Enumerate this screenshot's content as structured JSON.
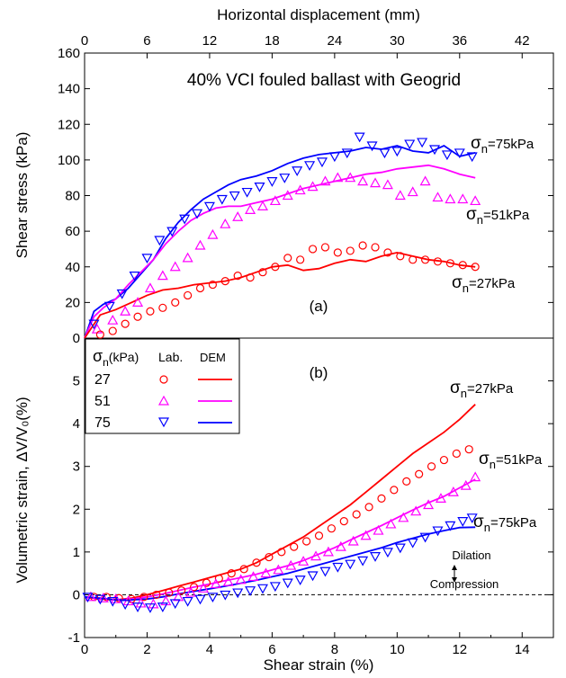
{
  "chart_data": [
    {
      "type": "line",
      "panel_label": "(a)",
      "title": "40% VCI  fouled ballast with Geogrid",
      "xlabel": "Shear strain (%)",
      "x2label": "Horizontal displacement (mm)",
      "ylabel": "Shear stress (kPa)",
      "xlim": [
        0,
        15
      ],
      "x2lim": [
        0,
        45
      ],
      "ylim": [
        0,
        160
      ],
      "x2ticks": [
        0,
        6,
        12,
        18,
        24,
        30,
        36,
        42
      ],
      "yticks": [
        0,
        20,
        40,
        60,
        80,
        100,
        120,
        140,
        160
      ],
      "annotations": [
        {
          "label": "σ",
          "sub": "n",
          "text": "=75kPa"
        },
        {
          "label": "σ",
          "sub": "n",
          "text": "=51kPa"
        },
        {
          "label": "σ",
          "sub": "n",
          "text": "=27kPa"
        }
      ],
      "series": [
        {
          "name": "75",
          "kind": "DEM",
          "color": "#0000ff",
          "x": [
            0,
            0.3,
            0.6,
            1,
            1.4,
            1.8,
            2.2,
            2.6,
            3,
            3.4,
            3.8,
            4.2,
            4.6,
            5,
            5.5,
            6,
            6.5,
            7,
            7.5,
            8,
            8.5,
            9,
            9.5,
            10,
            10.5,
            11,
            11.5,
            12,
            12.5
          ],
          "y": [
            0,
            15,
            19,
            22,
            28,
            36,
            44,
            56,
            65,
            72,
            78,
            82,
            86,
            89,
            91,
            94,
            98,
            101,
            103,
            104,
            105,
            107,
            106,
            108,
            105,
            104,
            108,
            102,
            104
          ]
        },
        {
          "name": "51",
          "kind": "DEM",
          "color": "#ff00ff",
          "x": [
            0,
            0.3,
            0.6,
            1,
            1.4,
            1.8,
            2.2,
            2.6,
            3,
            3.4,
            3.8,
            4.2,
            4.6,
            5,
            5.5,
            6,
            6.5,
            7,
            7.5,
            8,
            8.5,
            9,
            9.5,
            10,
            10.5,
            11,
            11.5,
            12,
            12.5
          ],
          "y": [
            0,
            12,
            17,
            22,
            30,
            37,
            44,
            53,
            60,
            66,
            70,
            73,
            74,
            74,
            76,
            78,
            81,
            84,
            86,
            88,
            90,
            92,
            93,
            95,
            96,
            97,
            95,
            92,
            90
          ]
        },
        {
          "name": "27",
          "kind": "DEM",
          "color": "#ff0000",
          "x": [
            0,
            0.5,
            1,
            1.5,
            2,
            2.5,
            3,
            3.5,
            4,
            4.5,
            5,
            5.5,
            6,
            6.5,
            7,
            7.5,
            8,
            8.5,
            9,
            9.5,
            10,
            10.5,
            11,
            11.5,
            12,
            12.5
          ],
          "y": [
            0,
            13,
            16,
            20,
            24,
            27,
            28,
            30,
            31,
            32,
            34,
            37,
            40,
            41,
            38,
            39,
            42,
            44,
            43,
            46,
            48,
            46,
            44,
            43,
            41,
            40
          ]
        },
        {
          "name": "75",
          "kind": "Lab.",
          "color": "#0000ff",
          "x": [
            0.3,
            0.8,
            1.2,
            1.6,
            2,
            2.4,
            2.8,
            3.2,
            3.6,
            4,
            4.4,
            4.8,
            5.2,
            5.6,
            6,
            6.4,
            6.8,
            7.2,
            7.6,
            8,
            8.4,
            8.8,
            9.2,
            9.6,
            10,
            10.4,
            10.8,
            11.2,
            11.6,
            12,
            12.4
          ],
          "y": [
            8,
            18,
            25,
            35,
            45,
            55,
            60,
            67,
            70,
            74,
            78,
            80,
            82,
            85,
            88,
            90,
            94,
            97,
            99,
            102,
            104,
            113,
            108,
            104,
            105,
            109,
            110,
            106,
            103,
            104,
            102
          ]
        },
        {
          "name": "51",
          "kind": "Lab.",
          "color": "#ff00ff",
          "x": [
            0.4,
            0.9,
            1.3,
            1.7,
            2.1,
            2.5,
            2.9,
            3.3,
            3.7,
            4.1,
            4.5,
            4.9,
            5.3,
            5.7,
            6.1,
            6.5,
            6.9,
            7.3,
            7.7,
            8.1,
            8.5,
            8.9,
            9.3,
            9.7,
            10.1,
            10.5,
            10.9,
            11.3,
            11.7,
            12.1,
            12.5
          ],
          "y": [
            5,
            10,
            15,
            20,
            28,
            35,
            40,
            45,
            52,
            58,
            64,
            68,
            72,
            74,
            77,
            80,
            83,
            85,
            88,
            90,
            90,
            88,
            87,
            86,
            80,
            82,
            88,
            79,
            78,
            78,
            77
          ]
        },
        {
          "name": "27",
          "kind": "Lab.",
          "color": "#ff0000",
          "x": [
            0.5,
            0.9,
            1.3,
            1.7,
            2.1,
            2.5,
            2.9,
            3.3,
            3.7,
            4.1,
            4.5,
            4.9,
            5.3,
            5.7,
            6.1,
            6.5,
            6.9,
            7.3,
            7.7,
            8.1,
            8.5,
            8.9,
            9.3,
            9.7,
            10.1,
            10.5,
            10.9,
            11.3,
            11.7,
            12.1,
            12.5
          ],
          "y": [
            2,
            4,
            8,
            12,
            15,
            17,
            20,
            24,
            28,
            30,
            32,
            35,
            34,
            37,
            40,
            45,
            44,
            50,
            51,
            48,
            49,
            52,
            51,
            48,
            46,
            44,
            44,
            43,
            42,
            41,
            40
          ]
        }
      ]
    },
    {
      "type": "line",
      "panel_label": "(b)",
      "xlabel": "Shear strain (%)",
      "ylabel": "Volumetric strain, ΔV/V₀(%)",
      "xlim": [
        0,
        15
      ],
      "ylim": [
        -1,
        6
      ],
      "xticks": [
        0,
        2,
        4,
        6,
        8,
        10,
        12,
        14
      ],
      "yticks": [
        -1,
        0,
        1,
        2,
        3,
        4,
        5
      ],
      "legend": {
        "placement": "top-left",
        "header": {
          "sigma": "σ",
          "sub": "n",
          "unit": "(kPa)",
          "lab": "Lab.",
          "dem": "DEM"
        },
        "rows": [
          "27",
          "51",
          "75"
        ]
      },
      "annotations": [
        {
          "label": "σ",
          "sub": "n",
          "text": "=27kPa"
        },
        {
          "label": "σ",
          "sub": "n",
          "text": "=51kPa"
        },
        {
          "label": "σ",
          "sub": "n",
          "text": "=75kPa"
        },
        {
          "text": "Dilation"
        },
        {
          "text": "Compression"
        }
      ],
      "series": [
        {
          "name": "27",
          "kind": "DEM",
          "color": "#ff0000",
          "x": [
            0,
            0.5,
            1,
            1.5,
            2,
            2.5,
            3,
            3.5,
            4,
            4.5,
            5,
            5.5,
            6,
            6.5,
            7,
            7.5,
            8,
            8.5,
            9,
            9.5,
            10,
            10.5,
            11,
            11.5,
            12,
            12.5
          ],
          "y": [
            -0.05,
            -0.1,
            -0.12,
            -0.08,
            0,
            0.1,
            0.2,
            0.3,
            0.4,
            0.5,
            0.6,
            0.75,
            0.95,
            1.15,
            1.35,
            1.6,
            1.85,
            2.1,
            2.4,
            2.7,
            3.0,
            3.3,
            3.55,
            3.8,
            4.1,
            4.45
          ]
        },
        {
          "name": "51",
          "kind": "DEM",
          "color": "#ff00ff",
          "x": [
            0,
            0.5,
            1,
            1.5,
            2,
            2.5,
            3,
            3.5,
            4,
            4.5,
            5,
            5.5,
            6,
            6.5,
            7,
            7.5,
            8,
            8.5,
            9,
            9.5,
            10,
            10.5,
            11,
            11.5,
            12,
            12.5
          ],
          "y": [
            -0.05,
            -0.1,
            -0.12,
            -0.1,
            -0.05,
            0.02,
            0.1,
            0.18,
            0.25,
            0.33,
            0.4,
            0.48,
            0.58,
            0.68,
            0.8,
            0.95,
            1.1,
            1.28,
            1.45,
            1.62,
            1.8,
            1.98,
            2.15,
            2.3,
            2.5,
            2.7
          ]
        },
        {
          "name": "75",
          "kind": "DEM",
          "color": "#0000ff",
          "x": [
            0,
            0.5,
            1,
            1.5,
            2,
            2.5,
            3,
            3.5,
            4,
            4.5,
            5,
            5.5,
            6,
            6.5,
            7,
            7.5,
            8,
            8.5,
            9,
            9.5,
            10,
            10.5,
            11,
            11.5,
            12,
            12.5
          ],
          "y": [
            -0.05,
            -0.08,
            -0.12,
            -0.12,
            -0.1,
            -0.05,
            0.02,
            0.08,
            0.14,
            0.2,
            0.27,
            0.34,
            0.42,
            0.5,
            0.6,
            0.7,
            0.8,
            0.9,
            1.0,
            1.1,
            1.22,
            1.32,
            1.42,
            1.5,
            1.57,
            1.58
          ]
        },
        {
          "name": "27",
          "kind": "Lab.",
          "color": "#ff0000",
          "x": [
            0.3,
            0.7,
            1.1,
            1.5,
            1.9,
            2.3,
            2.7,
            3.1,
            3.5,
            3.9,
            4.3,
            4.7,
            5.1,
            5.5,
            5.9,
            6.3,
            6.7,
            7.1,
            7.5,
            7.9,
            8.3,
            8.7,
            9.1,
            9.5,
            9.9,
            10.3,
            10.7,
            11.1,
            11.5,
            11.9,
            12.3
          ],
          "y": [
            -0.05,
            -0.05,
            -0.08,
            -0.1,
            -0.05,
            0,
            0.05,
            0.1,
            0.18,
            0.28,
            0.38,
            0.5,
            0.6,
            0.75,
            0.88,
            1.0,
            1.12,
            1.25,
            1.38,
            1.55,
            1.72,
            1.88,
            2.05,
            2.25,
            2.45,
            2.65,
            2.82,
            3.0,
            3.15,
            3.3,
            3.4
          ]
        },
        {
          "name": "51",
          "kind": "Lab.",
          "color": "#ff00ff",
          "x": [
            0.2,
            0.6,
            1.0,
            1.4,
            1.8,
            2.2,
            2.6,
            3.0,
            3.4,
            3.8,
            4.2,
            4.6,
            5.0,
            5.4,
            5.8,
            6.2,
            6.6,
            7.0,
            7.4,
            7.8,
            8.2,
            8.6,
            9.0,
            9.4,
            9.8,
            10.2,
            10.6,
            11.0,
            11.4,
            11.8,
            12.2,
            12.5
          ],
          "y": [
            -0.05,
            -0.08,
            -0.1,
            -0.15,
            -0.2,
            -0.22,
            -0.15,
            -0.05,
            0.05,
            0.15,
            0.25,
            0.3,
            0.35,
            0.42,
            0.5,
            0.58,
            0.68,
            0.78,
            0.9,
            1.0,
            1.12,
            1.25,
            1.38,
            1.5,
            1.65,
            1.8,
            1.95,
            2.1,
            2.25,
            2.4,
            2.55,
            2.75
          ]
        },
        {
          "name": "75",
          "kind": "Lab.",
          "color": "#0000ff",
          "x": [
            0.1,
            0.5,
            0.9,
            1.3,
            1.7,
            2.1,
            2.5,
            2.9,
            3.3,
            3.7,
            4.1,
            4.5,
            4.9,
            5.3,
            5.7,
            6.1,
            6.5,
            6.9,
            7.3,
            7.7,
            8.1,
            8.5,
            8.9,
            9.3,
            9.7,
            10.1,
            10.5,
            10.9,
            11.3,
            11.7,
            12.1,
            12.4
          ],
          "y": [
            -0.05,
            -0.1,
            -0.15,
            -0.22,
            -0.28,
            -0.3,
            -0.28,
            -0.2,
            -0.15,
            -0.1,
            -0.05,
            0,
            0.05,
            0.1,
            0.15,
            0.2,
            0.28,
            0.35,
            0.45,
            0.55,
            0.65,
            0.72,
            0.8,
            0.9,
            1.0,
            1.1,
            1.22,
            1.35,
            1.5,
            1.62,
            1.72,
            1.8
          ]
        }
      ]
    }
  ]
}
